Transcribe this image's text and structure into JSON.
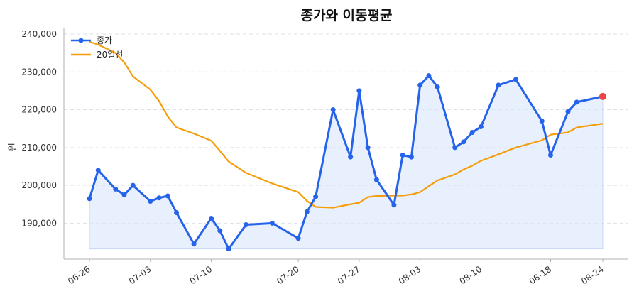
{
  "chart_data": {
    "type": "line",
    "title": "종가와 이동평균",
    "xlabel": "",
    "ylabel": "원",
    "ylim": [
      180500,
      241500
    ],
    "grid": true,
    "legend_position": "top-left",
    "x": [
      "06-26",
      "06-27",
      "06-28",
      "06-29",
      "06-30",
      "07-01",
      "07-02",
      "07-03",
      "07-04",
      "07-05",
      "07-06",
      "07-07",
      "07-08",
      "07-09",
      "07-10",
      "07-11",
      "07-12",
      "07-13",
      "07-14",
      "07-15",
      "07-16",
      "07-17",
      "07-18",
      "07-19",
      "07-20",
      "07-21",
      "07-22",
      "07-23",
      "07-24",
      "07-25",
      "07-26",
      "07-27",
      "07-28",
      "07-29",
      "07-30",
      "07-31",
      "08-01",
      "08-02",
      "08-03",
      "08-04",
      "08-05",
      "08-06",
      "08-07",
      "08-08",
      "08-09",
      "08-10",
      "08-11",
      "08-12",
      "08-13",
      "08-14",
      "08-15",
      "08-16",
      "08-17",
      "08-18",
      "08-19",
      "08-20",
      "08-21",
      "08-22",
      "08-23",
      "08-24"
    ],
    "x_tick_labels": [
      "06-26",
      "07-03",
      "07-10",
      "07-20",
      "07-27",
      "08-03",
      "08-10",
      "08-18",
      "08-24"
    ],
    "y_ticks": [
      190000,
      200000,
      210000,
      220000,
      230000,
      240000
    ],
    "y_tick_labels": [
      "190,000",
      "200,000",
      "210,000",
      "220,000",
      "230,000",
      "240,000"
    ],
    "series": [
      {
        "name": "종가",
        "color": "#2563eb",
        "marker": true,
        "fill": "#dbe6fb",
        "points": [
          [
            "06-26",
            196500
          ],
          [
            "06-27",
            204000
          ],
          [
            "06-29",
            199000
          ],
          [
            "06-30",
            197500
          ],
          [
            "07-01",
            200000
          ],
          [
            "07-03",
            195800
          ],
          [
            "07-04",
            196700
          ],
          [
            "07-05",
            197200
          ],
          [
            "07-06",
            192800
          ],
          [
            "07-08",
            184500
          ],
          [
            "07-10",
            191300
          ],
          [
            "07-11",
            188000
          ],
          [
            "07-12",
            183200
          ],
          [
            "07-14",
            189600
          ],
          [
            "07-17",
            190000
          ],
          [
            "07-20",
            186000
          ],
          [
            "07-21",
            193000
          ],
          [
            "07-22",
            197000
          ],
          [
            "07-24",
            220000
          ],
          [
            "07-26",
            207500
          ],
          [
            "07-27",
            225000
          ],
          [
            "07-28",
            210000
          ],
          [
            "07-29",
            201500
          ],
          [
            "07-31",
            194800
          ],
          [
            "08-01",
            208000
          ],
          [
            "08-02",
            207500
          ],
          [
            "08-03",
            226500
          ],
          [
            "08-04",
            229000
          ],
          [
            "08-05",
            226000
          ],
          [
            "08-07",
            210000
          ],
          [
            "08-08",
            211500
          ],
          [
            "08-09",
            214000
          ],
          [
            "08-10",
            215500
          ],
          [
            "08-12",
            226500
          ],
          [
            "08-14",
            228000
          ],
          [
            "08-17",
            217000
          ],
          [
            "08-18",
            208000
          ],
          [
            "08-20",
            219500
          ],
          [
            "08-21",
            222000
          ],
          [
            "08-24",
            223500
          ]
        ]
      },
      {
        "name": "20일선",
        "color": "#f59e0b",
        "marker": false,
        "points": [
          [
            "06-26",
            238000
          ],
          [
            "06-27",
            237200
          ],
          [
            "06-29",
            235000
          ],
          [
            "06-30",
            232500
          ],
          [
            "07-01",
            228800
          ],
          [
            "07-03",
            225300
          ],
          [
            "07-04",
            222300
          ],
          [
            "07-05",
            218200
          ],
          [
            "07-06",
            215300
          ],
          [
            "07-08",
            213700
          ],
          [
            "07-10",
            211800
          ],
          [
            "07-11",
            209100
          ],
          [
            "07-12",
            206300
          ],
          [
            "07-14",
            203300
          ],
          [
            "07-17",
            200500
          ],
          [
            "07-20",
            198200
          ],
          [
            "07-21",
            195900
          ],
          [
            "07-22",
            194300
          ],
          [
            "07-24",
            194100
          ],
          [
            "07-26",
            195000
          ],
          [
            "07-27",
            195400
          ],
          [
            "07-28",
            196900
          ],
          [
            "07-29",
            197200
          ],
          [
            "07-31",
            197300
          ],
          [
            "08-01",
            197300
          ],
          [
            "08-02",
            197600
          ],
          [
            "08-03",
            198200
          ],
          [
            "08-04",
            199800
          ],
          [
            "08-05",
            201300
          ],
          [
            "08-07",
            202900
          ],
          [
            "08-08",
            204200
          ],
          [
            "08-09",
            205200
          ],
          [
            "08-10",
            206500
          ],
          [
            "08-12",
            208200
          ],
          [
            "08-14",
            210000
          ],
          [
            "08-17",
            211900
          ],
          [
            "08-18",
            213400
          ],
          [
            "08-20",
            214000
          ],
          [
            "08-21",
            215300
          ],
          [
            "08-24",
            216300
          ]
        ]
      }
    ],
    "highlight_last": {
      "series": "종가",
      "color": "#ef4444"
    }
  }
}
